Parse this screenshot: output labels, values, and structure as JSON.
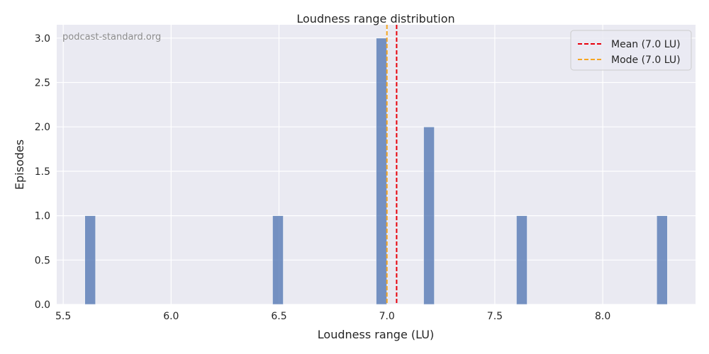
{
  "chart_data": {
    "type": "bar",
    "title": "Loudness range distribution",
    "xlabel": "Loudness range (LU)",
    "ylabel": "Episodes",
    "xlim": [
      5.47,
      8.43
    ],
    "ylim": [
      0,
      3.15
    ],
    "xticks": [
      5.5,
      6.0,
      6.5,
      7.0,
      7.5,
      8.0
    ],
    "xtick_labels": [
      "5.5",
      "6.0",
      "6.5",
      "7.0",
      "7.5",
      "8.0"
    ],
    "yticks": [
      0,
      0.5,
      1.0,
      1.5,
      2.0,
      2.5,
      3.0
    ],
    "ytick_labels": [
      "0.0",
      "0.5",
      "1.0",
      "1.5",
      "2.0",
      "2.5",
      "3.0"
    ],
    "grid": true,
    "bar_color": "#4c72b0",
    "bins": [
      {
        "x0": 5.6,
        "x1": 5.65,
        "count": 1
      },
      {
        "x0": 6.47,
        "x1": 6.52,
        "count": 1
      },
      {
        "x0": 6.95,
        "x1": 7.0,
        "count": 3
      },
      {
        "x0": 7.17,
        "x1": 7.22,
        "count": 2
      },
      {
        "x0": 7.6,
        "x1": 7.65,
        "count": 1
      },
      {
        "x0": 8.25,
        "x1": 8.3,
        "count": 1
      }
    ],
    "reference_lines": [
      {
        "label": "Mean (7.0 LU)",
        "value": 7.045,
        "color": "#e8000b",
        "style": "dashed"
      },
      {
        "label": "Mode (7.0 LU)",
        "value": 7.0,
        "color": "#f5a623",
        "style": "dashed"
      }
    ],
    "legend_placement": "top-right",
    "background_color": "#eaeaf2"
  },
  "watermark": "podcast-standard.org"
}
